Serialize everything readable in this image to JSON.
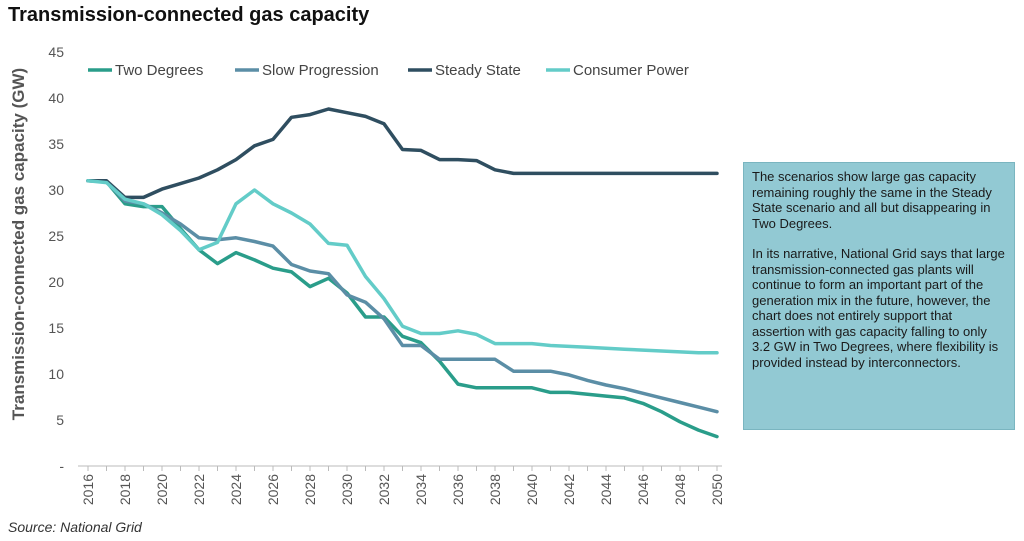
{
  "title": "Transmission-connected gas capacity",
  "source": "Source: National Grid",
  "note": {
    "paragraph1": "The scenarios show large gas capacity remaining roughly the same in the Steady State scenario and all but disappearing in Two Degrees.",
    "paragraph2": "In its narrative, National Grid says that large transmission-connected gas plants will continue to form an important part of the generation mix in the future, however, the chart does not entirely support that assertion with gas capacity falling to only 3.2 GW in Two Degrees, where flexibility is provided instead by interconnectors."
  },
  "chart_data": {
    "type": "line",
    "title": "Transmission-connected gas capacity",
    "xlabel": "",
    "ylabel": "Transmission-connected  gas capacity (GW)",
    "x": [
      2016,
      2017,
      2018,
      2019,
      2020,
      2021,
      2022,
      2023,
      2024,
      2025,
      2026,
      2027,
      2028,
      2029,
      2030,
      2031,
      2032,
      2033,
      2034,
      2035,
      2036,
      2037,
      2038,
      2039,
      2040,
      2041,
      2042,
      2043,
      2044,
      2045,
      2046,
      2047,
      2048,
      2049,
      2050
    ],
    "x_tick_labels": [
      "2016",
      "2018",
      "2020",
      "2022",
      "2024",
      "2026",
      "2028",
      "2030",
      "2032",
      "2034",
      "2036",
      "2038",
      "2040",
      "2042",
      "2044",
      "2046",
      "2048",
      "2050"
    ],
    "y_tick_labels": [
      "-",
      "5",
      "10",
      "15",
      "20",
      "25",
      "30",
      "35",
      "40",
      "45"
    ],
    "ylim": [
      0,
      45
    ],
    "grid": false,
    "legend_position": "top",
    "series": [
      {
        "name": "Two Degrees",
        "color": "#2a9d8a",
        "values": [
          31.0,
          30.9,
          28.5,
          28.2,
          28.2,
          25.8,
          23.5,
          22.0,
          23.2,
          22.4,
          21.5,
          21.1,
          19.5,
          20.4,
          18.8,
          16.2,
          16.2,
          14.1,
          13.4,
          11.4,
          8.9,
          8.5,
          8.5,
          8.5,
          8.5,
          8.0,
          8.0,
          7.8,
          7.6,
          7.4,
          6.8,
          5.9,
          4.8,
          3.9,
          3.2
        ]
      },
      {
        "name": "Slow Progression",
        "color": "#5b8ea6",
        "values": [
          31.0,
          30.9,
          28.8,
          28.5,
          27.5,
          26.3,
          24.8,
          24.6,
          24.8,
          24.4,
          23.9,
          21.9,
          21.2,
          20.9,
          18.6,
          17.8,
          16.0,
          13.1,
          13.1,
          11.6,
          11.6,
          11.6,
          11.6,
          10.3,
          10.3,
          10.3,
          9.9,
          9.3,
          8.8,
          8.4,
          7.9,
          7.4,
          6.9,
          6.4,
          5.9
        ]
      },
      {
        "name": "Steady State",
        "color": "#2f4e60",
        "values": [
          31.0,
          31.0,
          29.2,
          29.2,
          30.1,
          30.7,
          31.3,
          32.2,
          33.3,
          34.8,
          35.5,
          37.9,
          38.2,
          38.8,
          38.4,
          38.0,
          37.2,
          34.4,
          34.3,
          33.3,
          33.3,
          33.2,
          32.2,
          31.8,
          31.8,
          31.8,
          31.8,
          31.8,
          31.8,
          31.8,
          31.8,
          31.8,
          31.8,
          31.8,
          31.8
        ]
      },
      {
        "name": "Consumer Power",
        "color": "#63ccc8",
        "values": [
          31.0,
          30.8,
          29.0,
          28.5,
          27.3,
          25.6,
          23.5,
          24.3,
          28.5,
          30.0,
          28.5,
          27.5,
          26.3,
          24.2,
          24.0,
          20.6,
          18.2,
          15.2,
          14.4,
          14.4,
          14.7,
          14.3,
          13.3,
          13.3,
          13.3,
          13.1,
          13.0,
          12.9,
          12.8,
          12.7,
          12.6,
          12.5,
          12.4,
          12.3,
          12.3
        ]
      }
    ]
  }
}
